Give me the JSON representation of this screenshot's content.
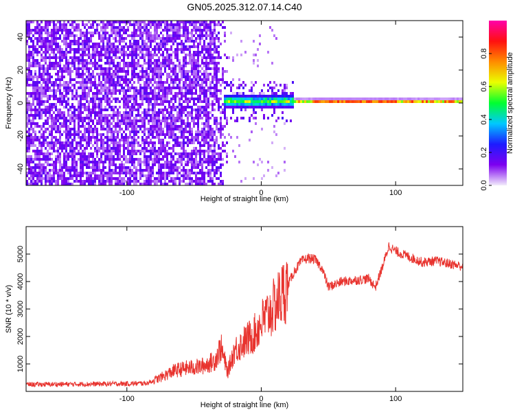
{
  "title": "GN05.2025.312.07.14.C40",
  "chart_data": [
    {
      "type": "heatmap",
      "xlabel": "Height of straight line (km)",
      "ylabel": "Frequency (Hz)",
      "xlim": [
        -175,
        150
      ],
      "ylim": [
        -50,
        50
      ],
      "x_ticks": [
        -100,
        0,
        100
      ],
      "y_ticks": [
        -40,
        -20,
        0,
        20,
        40
      ],
      "colorbar": {
        "label": "Normalized spectral amplitude",
        "range": [
          0,
          1
        ],
        "ticks": [
          0.0,
          0.2,
          0.4,
          0.6,
          0.8
        ],
        "colormap": [
          "#f2ecfb",
          "#7d00f0",
          "#1d1bff",
          "#00c8ff",
          "#00ff30",
          "#eaff00",
          "#ff8c00",
          "#ff1010",
          "#ff00aa"
        ]
      },
      "features": {
        "noise_x_range": [
          -175,
          -25
        ],
        "noise_amplitude": 0.12,
        "ridge_frequency": 1,
        "ridge_x_range": [
          -28,
          150
        ],
        "ridge_peak_amplitude": 0.95
      }
    },
    {
      "type": "line",
      "xlabel": "Height of straight line (km)",
      "ylabel": "SNR (10 * v/v)",
      "xlim": [
        -175,
        150
      ],
      "ylim": [
        0,
        6000
      ],
      "x_ticks": [
        -100,
        0,
        100
      ],
      "y_ticks": [
        1000,
        2000,
        3000,
        4000,
        5000
      ],
      "line_color": "#e8332e",
      "series": [
        {
          "x": [
            -175,
            -150,
            -120,
            -100,
            -85,
            -75,
            -65,
            -55,
            -45,
            -35,
            -30,
            -25,
            -20,
            -15,
            -10,
            -5,
            0,
            5,
            10,
            15,
            20,
            25,
            30,
            35,
            40,
            45,
            50,
            55,
            60,
            70,
            80,
            85,
            90,
            95,
            100,
            110,
            120,
            130,
            140,
            150
          ],
          "values": [
            250,
            260,
            270,
            280,
            300,
            500,
            750,
            850,
            900,
            1100,
            1600,
            700,
            1500,
            1700,
            1900,
            2100,
            2500,
            2800,
            3100,
            3500,
            3900,
            4400,
            4750,
            4850,
            4800,
            4500,
            3800,
            3900,
            4000,
            4050,
            4100,
            3800,
            4500,
            5300,
            5100,
            4900,
            4700,
            4750,
            4650,
            4550
          ]
        }
      ]
    }
  ]
}
